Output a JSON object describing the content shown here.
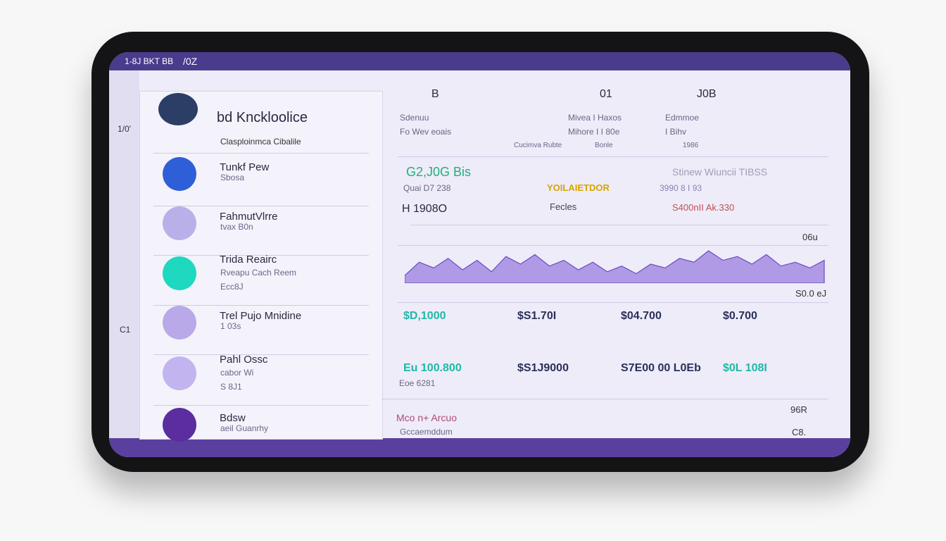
{
  "status_bar": {
    "time": "1-8J BKT BB",
    "center": "/0Z"
  },
  "sidebar": [
    "1/0'",
    "C1"
  ],
  "header": {
    "brand": "bd Knckloolice",
    "subtitle": "Clasploinmca Cibalile"
  },
  "list": [
    {
      "title": "Tunkf Pew",
      "sub": "Sbosa"
    },
    {
      "title": "FahmutVlrre",
      "sub": "tvax B0n"
    },
    {
      "title": "Trida Reairc",
      "sub": "Rveapu Cach Reem",
      "meta": "Ecc8J"
    },
    {
      "title": "Trel Pujo Mnidine",
      "sub": "1 03s"
    },
    {
      "title": "Pahl Ossc",
      "sub": "cabor Wi",
      "meta": "S 8J1"
    },
    {
      "title": "Bdsw",
      "sub": "aeil Guanrhy"
    }
  ],
  "top_columns": [
    {
      "head": "B",
      "lines": [
        "Sdenuu",
        "Fo Wev eoais"
      ]
    },
    {
      "head": "01",
      "lines": [
        "Mivea I Haxos",
        "Mihore I I 80e"
      ]
    },
    {
      "head": "J0B",
      "lines": [
        "Edmmoe",
        "I Bihv"
      ]
    }
  ],
  "top_footer": [
    "Cucimva Rubte",
    "Bonle",
    "1986"
  ],
  "summary": {
    "amount": "G2,J0G Bis",
    "amount_sub": "Quai D7 238",
    "tag": "YOILAIETDOR",
    "tag2": "Stinew Wiuncii TIBSS",
    "rate": "3990 8 I 93",
    "count": "H 1908O",
    "label": "Fecles",
    "alert": "S400nII Ak.330"
  },
  "sparkline": {
    "values": [
      20,
      55,
      40,
      65,
      35,
      60,
      30,
      70,
      50,
      75,
      45,
      60,
      35,
      55,
      30,
      45,
      25,
      50,
      40,
      65,
      55,
      85,
      60,
      70,
      50,
      75,
      45,
      55,
      40,
      60
    ],
    "top_label": "06u",
    "bottom_label": "S0.0 eJ"
  },
  "rows": [
    [
      "$D,1000",
      "$S1.70I",
      "$04.700",
      "$0.700"
    ],
    [
      "Eu 100.800",
      "$S1J9000",
      "S7E00 00 L0Eb",
      "$0L 108I"
    ]
  ],
  "row_sub": "Eoe 6281",
  "footer": {
    "left": "Mco n+ Arcuo",
    "left_sub": "Gccaemddum",
    "r1": "96R",
    "r2": "C8."
  }
}
